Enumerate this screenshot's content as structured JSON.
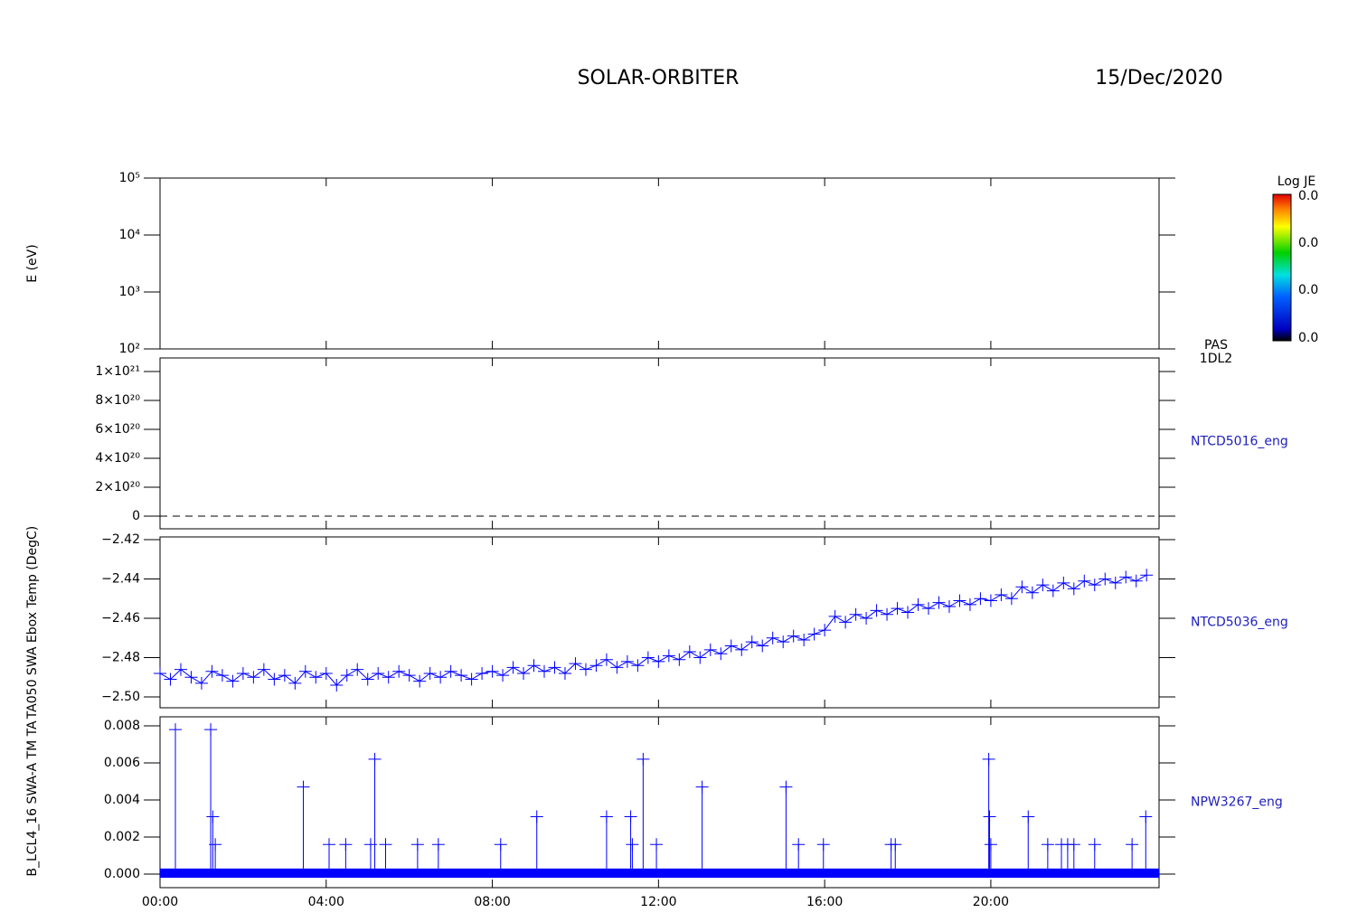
{
  "title": "SOLAR-ORBITER",
  "date": "15/Dec/2020",
  "colorbar": {
    "title": "Log JE",
    "labels": [
      "0.0",
      "0.0",
      "0.0",
      "0.0"
    ]
  },
  "chart_data": [
    {
      "type": "spectrogram",
      "ylabel": "E (eV)",
      "log": true,
      "ylim": [
        100,
        100000
      ],
      "yticks": [
        {
          "value": 100,
          "label": "10²"
        },
        {
          "value": 1000,
          "label": "10³"
        },
        {
          "value": 10000,
          "label": "10⁴"
        },
        {
          "value": 100000,
          "label": "10⁵"
        }
      ],
      "side_label": [
        "PAS",
        "1DL2"
      ],
      "xlim": [
        0,
        24.05
      ]
    },
    {
      "type": "hline",
      "series_name": "NTCD5016_eng",
      "ylim": [
        -8.75e+19,
        1.094e+21
      ],
      "hline": 0,
      "yticks": [
        0,
        {
          "value": 2e+20,
          "label": "2×10²⁰"
        },
        {
          "value": 4e+20,
          "label": "4×10²⁰"
        },
        {
          "value": 6e+20,
          "label": "6×10²⁰"
        },
        {
          "value": 8e+20,
          "label": "8×10²⁰"
        },
        {
          "value": 1e+21,
          "label": "1×10²¹"
        }
      ],
      "xlim": [
        0,
        24.05
      ],
      "color": "#0000ff"
    },
    {
      "type": "line",
      "series_name": "NTCD5036_eng",
      "ylabel": "TA050 SWA Ebox Temp (DegC)",
      "ylim": [
        -2.5055,
        -2.4186
      ],
      "yticks": [
        {
          "value": -2.5,
          "label": "−2.50"
        },
        {
          "value": -2.48,
          "label": "−2.48"
        },
        {
          "value": -2.46,
          "label": "−2.46"
        },
        {
          "value": -2.44,
          "label": "−2.44"
        },
        {
          "value": -2.42,
          "label": "−2.42"
        }
      ],
      "xlim": [
        0,
        24.05
      ],
      "color": "#0000ff",
      "x": [
        0,
        0.25,
        0.5,
        0.75,
        1,
        1.25,
        1.5,
        1.75,
        2,
        2.25,
        2.5,
        2.75,
        3,
        3.25,
        3.5,
        3.75,
        4,
        4.25,
        4.5,
        4.75,
        5,
        5.25,
        5.5,
        5.75,
        6,
        6.25,
        6.5,
        6.75,
        7,
        7.25,
        7.5,
        7.75,
        8,
        8.25,
        8.5,
        8.75,
        9,
        9.25,
        9.5,
        9.75,
        10,
        10.25,
        10.5,
        10.75,
        11,
        11.25,
        11.5,
        11.75,
        12,
        12.25,
        12.5,
        12.75,
        13,
        13.25,
        13.5,
        13.75,
        14,
        14.25,
        14.5,
        14.75,
        15,
        15.25,
        15.5,
        15.75,
        16,
        16.25,
        16.5,
        16.75,
        17,
        17.25,
        17.5,
        17.75,
        18,
        18.25,
        18.5,
        18.75,
        19,
        19.25,
        19.5,
        19.75,
        20,
        20.25,
        20.5,
        20.75,
        21,
        21.25,
        21.5,
        21.75,
        22,
        22.25,
        22.5,
        22.75,
        23,
        23.25,
        23.5,
        23.75
      ],
      "values": [
        -2.488,
        -2.491,
        -2.486,
        -2.49,
        -2.493,
        -2.487,
        -2.489,
        -2.492,
        -2.488,
        -2.49,
        -2.486,
        -2.491,
        -2.489,
        -2.493,
        -2.487,
        -2.49,
        -2.488,
        -2.494,
        -2.489,
        -2.486,
        -2.491,
        -2.488,
        -2.49,
        -2.487,
        -2.489,
        -2.492,
        -2.488,
        -2.49,
        -2.487,
        -2.489,
        -2.491,
        -2.488,
        -2.487,
        -2.489,
        -2.485,
        -2.488,
        -2.484,
        -2.487,
        -2.485,
        -2.488,
        -2.483,
        -2.486,
        -2.484,
        -2.481,
        -2.485,
        -2.482,
        -2.484,
        -2.48,
        -2.482,
        -2.479,
        -2.481,
        -2.477,
        -2.48,
        -2.476,
        -2.478,
        -2.474,
        -2.476,
        -2.472,
        -2.474,
        -2.47,
        -2.472,
        -2.469,
        -2.471,
        -2.468,
        -2.466,
        -2.459,
        -2.462,
        -2.458,
        -2.46,
        -2.456,
        -2.458,
        -2.455,
        -2.457,
        -2.453,
        -2.455,
        -2.452,
        -2.454,
        -2.451,
        -2.453,
        -2.45,
        -2.451,
        -2.448,
        -2.45,
        -2.444,
        -2.447,
        -2.443,
        -2.446,
        -2.442,
        -2.445,
        -2.441,
        -2.443,
        -2.44,
        -2.442,
        -2.439,
        -2.441,
        -2.438
      ]
    },
    {
      "type": "spike",
      "series_name": "NPW3267_eng",
      "ylabel": "B_LCL4_16 SWA-A TM TA",
      "ylim": [
        -0.000732,
        0.00849
      ],
      "yticks": [
        {
          "value": 0,
          "label": "0.000"
        },
        {
          "value": 0.002,
          "label": "0.002"
        },
        {
          "value": 0.004,
          "label": "0.004"
        },
        {
          "value": 0.006,
          "label": "0.006"
        },
        {
          "value": 0.008,
          "label": "0.008"
        }
      ],
      "xlim": [
        0,
        24.05
      ],
      "color": "#0000ff",
      "band": [
        -0.0002,
        0.0003
      ],
      "xticks": [
        {
          "value": 0,
          "label": "00:00"
        },
        {
          "value": 4,
          "label": "04:00"
        },
        {
          "value": 8,
          "label": "08:00"
        },
        {
          "value": 12,
          "label": "12:00"
        },
        {
          "value": 16,
          "label": "16:00"
        },
        {
          "value": 20,
          "label": "20:00"
        }
      ],
      "x": [
        0.37,
        1.22,
        1.27,
        1.33,
        3.45,
        4.07,
        4.47,
        5.07,
        5.17,
        5.43,
        6.2,
        6.7,
        8.2,
        9.07,
        10.75,
        11.33,
        11.37,
        11.63,
        11.95,
        13.05,
        15.07,
        15.37,
        15.97,
        17.6,
        17.7,
        19.95,
        19.97,
        20.0,
        20.9,
        21.37,
        21.7,
        21.85,
        22.0,
        22.5,
        23.4,
        23.73
      ],
      "values": [
        0.0078,
        0.0078,
        0.0031,
        0.0016,
        0.0047,
        0.0016,
        0.0016,
        0.0016,
        0.0062,
        0.0016,
        0.0016,
        0.0016,
        0.0016,
        0.0031,
        0.0031,
        0.0031,
        0.0016,
        0.0062,
        0.0016,
        0.0047,
        0.0047,
        0.0016,
        0.0016,
        0.0016,
        0.0016,
        0.0062,
        0.0031,
        0.0016,
        0.0031,
        0.0016,
        0.0016,
        0.0016,
        0.0016,
        0.0016,
        0.0016,
        0.0031
      ]
    }
  ]
}
